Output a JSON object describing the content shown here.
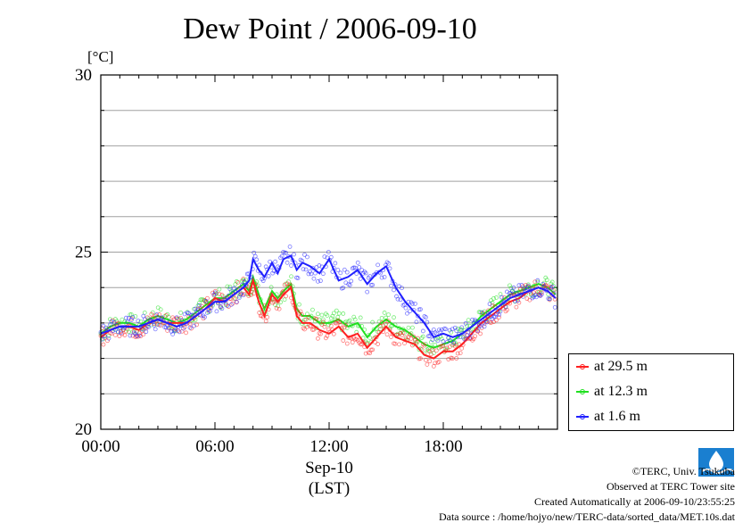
{
  "chart_data": {
    "type": "line",
    "title": "Dew Point / 2006-09-10",
    "unit_label": "[°C]",
    "ylim": [
      20,
      30
    ],
    "y_ticks": [
      "20",
      "25",
      "30"
    ],
    "xlim": [
      0,
      24
    ],
    "x_ticks": [
      "00:00",
      "06:00",
      "12:00",
      "18:00"
    ],
    "x_tick_values": [
      0,
      6,
      12,
      18
    ],
    "xlabel_date": "Sep-10",
    "xlabel_tz": "(LST)",
    "grid": true,
    "legend_position": "bottom-right",
    "series": [
      {
        "name": "at 29.5 m",
        "color": "#ff2020",
        "points": [
          [
            0,
            22.6
          ],
          [
            0.5,
            22.8
          ],
          [
            1,
            22.9
          ],
          [
            1.5,
            22.9
          ],
          [
            2,
            22.8
          ],
          [
            2.5,
            23.0
          ],
          [
            3,
            23.1
          ],
          [
            3.5,
            23.0
          ],
          [
            4,
            23.0
          ],
          [
            4.5,
            23.0
          ],
          [
            5,
            23.2
          ],
          [
            5.5,
            23.4
          ],
          [
            6,
            23.7
          ],
          [
            6.5,
            23.6
          ],
          [
            7,
            23.8
          ],
          [
            7.5,
            24.0
          ],
          [
            7.8,
            23.8
          ],
          [
            8,
            24.2
          ],
          [
            8.3,
            23.6
          ],
          [
            8.6,
            23.2
          ],
          [
            9,
            23.8
          ],
          [
            9.3,
            23.6
          ],
          [
            9.6,
            23.8
          ],
          [
            10,
            24.0
          ],
          [
            10.3,
            23.2
          ],
          [
            10.6,
            23.0
          ],
          [
            11,
            23.0
          ],
          [
            11.5,
            22.8
          ],
          [
            12,
            22.7
          ],
          [
            12.5,
            22.9
          ],
          [
            13,
            22.6
          ],
          [
            13.5,
            22.7
          ],
          [
            14,
            22.3
          ],
          [
            14.5,
            22.6
          ],
          [
            15,
            22.9
          ],
          [
            15.5,
            22.6
          ],
          [
            16,
            22.5
          ],
          [
            16.5,
            22.4
          ],
          [
            17,
            22.1
          ],
          [
            17.5,
            22.0
          ],
          [
            18,
            22.2
          ],
          [
            18.5,
            22.2
          ],
          [
            19,
            22.4
          ],
          [
            19.5,
            22.7
          ],
          [
            20,
            23.0
          ],
          [
            20.5,
            23.2
          ],
          [
            21,
            23.4
          ],
          [
            21.5,
            23.6
          ],
          [
            22,
            23.7
          ],
          [
            22.5,
            23.9
          ],
          [
            23,
            24.0
          ],
          [
            23.5,
            23.9
          ],
          [
            23.9,
            23.7
          ]
        ]
      },
      {
        "name": "at 12.3 m",
        "color": "#20e020",
        "points": [
          [
            0,
            22.7
          ],
          [
            0.5,
            22.9
          ],
          [
            1,
            23.0
          ],
          [
            1.5,
            23.0
          ],
          [
            2,
            22.9
          ],
          [
            2.5,
            23.1
          ],
          [
            3,
            23.2
          ],
          [
            3.5,
            23.1
          ],
          [
            4,
            23.0
          ],
          [
            4.5,
            23.1
          ],
          [
            5,
            23.3
          ],
          [
            5.5,
            23.5
          ],
          [
            6,
            23.7
          ],
          [
            6.5,
            23.7
          ],
          [
            7,
            23.9
          ],
          [
            7.5,
            24.1
          ],
          [
            7.8,
            23.9
          ],
          [
            8,
            24.3
          ],
          [
            8.3,
            23.8
          ],
          [
            8.6,
            23.4
          ],
          [
            9,
            23.9
          ],
          [
            9.3,
            23.7
          ],
          [
            9.6,
            23.9
          ],
          [
            10,
            24.1
          ],
          [
            10.3,
            23.4
          ],
          [
            10.6,
            23.2
          ],
          [
            11,
            23.2
          ],
          [
            11.5,
            23.0
          ],
          [
            12,
            23.0
          ],
          [
            12.5,
            23.1
          ],
          [
            13,
            22.9
          ],
          [
            13.5,
            23.0
          ],
          [
            14,
            22.6
          ],
          [
            14.5,
            22.9
          ],
          [
            15,
            23.1
          ],
          [
            15.5,
            22.9
          ],
          [
            16,
            22.8
          ],
          [
            16.5,
            22.6
          ],
          [
            17,
            22.4
          ],
          [
            17.5,
            22.3
          ],
          [
            18,
            22.4
          ],
          [
            18.5,
            22.5
          ],
          [
            19,
            22.7
          ],
          [
            19.5,
            22.9
          ],
          [
            20,
            23.2
          ],
          [
            20.5,
            23.4
          ],
          [
            21,
            23.6
          ],
          [
            21.5,
            23.8
          ],
          [
            22,
            23.9
          ],
          [
            22.5,
            24.0
          ],
          [
            23,
            24.1
          ],
          [
            23.5,
            24.0
          ],
          [
            23.9,
            23.8
          ]
        ]
      },
      {
        "name": "at 1.6 m",
        "color": "#2020ff",
        "points": [
          [
            0,
            22.7
          ],
          [
            0.5,
            22.8
          ],
          [
            1,
            22.9
          ],
          [
            1.5,
            22.9
          ],
          [
            2,
            22.9
          ],
          [
            2.5,
            23.0
          ],
          [
            3,
            23.1
          ],
          [
            3.5,
            23.0
          ],
          [
            4,
            22.9
          ],
          [
            4.5,
            23.0
          ],
          [
            5,
            23.2
          ],
          [
            5.5,
            23.4
          ],
          [
            6,
            23.6
          ],
          [
            6.5,
            23.6
          ],
          [
            7,
            23.8
          ],
          [
            7.5,
            24.0
          ],
          [
            7.8,
            24.2
          ],
          [
            8,
            24.8
          ],
          [
            8.3,
            24.5
          ],
          [
            8.6,
            24.3
          ],
          [
            9,
            24.7
          ],
          [
            9.3,
            24.4
          ],
          [
            9.6,
            24.8
          ],
          [
            10,
            24.9
          ],
          [
            10.3,
            24.5
          ],
          [
            10.6,
            24.7
          ],
          [
            11,
            24.6
          ],
          [
            11.5,
            24.4
          ],
          [
            12,
            24.8
          ],
          [
            12.5,
            24.2
          ],
          [
            13,
            24.3
          ],
          [
            13.5,
            24.5
          ],
          [
            14,
            24.1
          ],
          [
            14.5,
            24.4
          ],
          [
            15,
            24.6
          ],
          [
            15.5,
            24.0
          ],
          [
            16,
            23.6
          ],
          [
            16.5,
            23.3
          ],
          [
            17,
            23.0
          ],
          [
            17.5,
            22.6
          ],
          [
            18,
            22.7
          ],
          [
            18.5,
            22.6
          ],
          [
            19,
            22.7
          ],
          [
            19.5,
            22.9
          ],
          [
            20,
            23.1
          ],
          [
            20.5,
            23.3
          ],
          [
            21,
            23.5
          ],
          [
            21.5,
            23.7
          ],
          [
            22,
            23.8
          ],
          [
            22.5,
            23.9
          ],
          [
            23,
            24.0
          ],
          [
            23.5,
            23.9
          ],
          [
            23.9,
            23.7
          ]
        ]
      }
    ]
  },
  "footer": {
    "copyright": "©TERC, Univ. Tsukuba",
    "observed": "Observed at TERC Tower site",
    "created": "Created Automatically at 2006-09-10/23:55:25",
    "source": "Data source : /home/hojyo/new/TERC-data/sorted_data/MET.10s.dat"
  }
}
